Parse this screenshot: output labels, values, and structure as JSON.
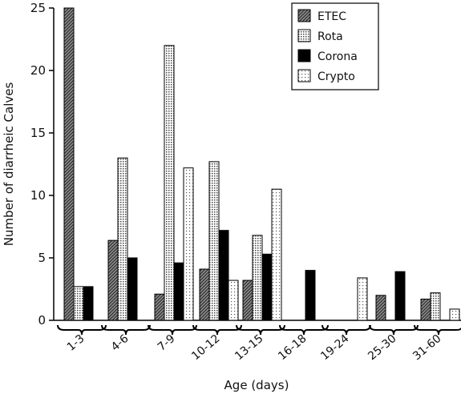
{
  "chart_data": {
    "type": "bar",
    "title": "",
    "xlabel": "Age (days)",
    "ylabel": "Number of diarrheic Calves",
    "ylim": [
      0,
      25
    ],
    "yticks": [
      0,
      5,
      10,
      15,
      20,
      25
    ],
    "grid": false,
    "legend_position": "top-right",
    "categories": [
      "1-3",
      "4-6",
      "7-9",
      "10-12",
      "13-15",
      "16-18",
      "19-24",
      "25-30",
      "31-60"
    ],
    "series": [
      {
        "name": "ETEC",
        "pattern": "hatch",
        "color": "#555555",
        "values": [
          25,
          6.4,
          2.1,
          4.1,
          3.2,
          0,
          0,
          2.0,
          1.7
        ]
      },
      {
        "name": "Rota",
        "pattern": "dots",
        "color": "#cccccc",
        "values": [
          2.7,
          13,
          22,
          12.7,
          6.8,
          0,
          0,
          0,
          2.2
        ]
      },
      {
        "name": "Corona",
        "pattern": "solid",
        "color": "#000000",
        "values": [
          2.7,
          5.0,
          4.6,
          7.2,
          5.3,
          4.0,
          0,
          3.9,
          0
        ]
      },
      {
        "name": "Crypto",
        "pattern": "sparse-dots",
        "color": "#eeeeee",
        "values": [
          0,
          0,
          12.2,
          3.2,
          10.5,
          0,
          3.4,
          0,
          0.9
        ]
      }
    ]
  }
}
